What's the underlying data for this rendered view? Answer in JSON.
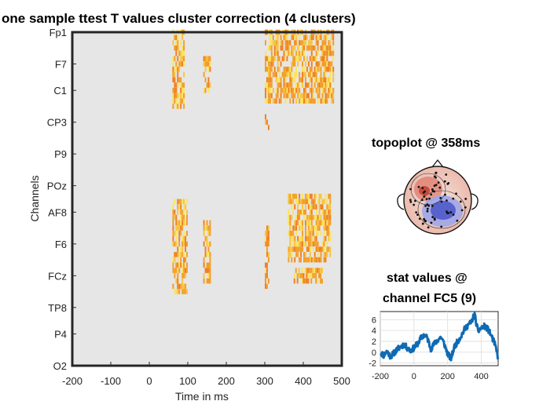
{
  "main": {
    "title": "one sample ttest T values cluster correction (4 clusters)",
    "ylabel": "Channels",
    "xlabel": "Time in ms",
    "xticks": [
      "-200",
      "-100",
      "0",
      "100",
      "200",
      "300",
      "400",
      "500"
    ],
    "yticks": [
      "Fp1",
      "F7",
      "C1",
      "CP3",
      "P9",
      "POz",
      "AF8",
      "F6",
      "FCz",
      "TP8",
      "P4",
      "O2"
    ]
  },
  "topo": {
    "title": "topoplot @ 358ms"
  },
  "stat": {
    "title_line1": "stat values @",
    "title_line2": "channel FC5 (9)",
    "xticks": [
      "-200",
      "0",
      "200",
      "400"
    ],
    "yticks": [
      "6",
      "4",
      "2",
      "0",
      "-2"
    ]
  },
  "colors": {
    "heatmap_bg": "#e6e6e6",
    "heat_low": "#f07f1e",
    "heat_mid": "#f2a22a",
    "heat_high": "#fde35a",
    "trace": "#0f6ab4",
    "topo_pos": "#d95f4f",
    "topo_neg": "#4a55c8"
  },
  "chart_data": [
    {
      "type": "heatmap",
      "title": "one sample ttest T values cluster correction (4 clusters)",
      "xlabel": "Time in ms",
      "ylabel": "Channels",
      "xlim": [
        -200,
        500
      ],
      "ylim_channels": [
        1,
        64
      ],
      "ytick_labels": [
        "Fp1",
        "F7",
        "C1",
        "CP3",
        "P9",
        "POz",
        "AF8",
        "F6",
        "FCz",
        "TP8",
        "P4",
        "O2"
      ],
      "ytick_channel_index": [
        1,
        7,
        12,
        18,
        24,
        30,
        35,
        41,
        47,
        53,
        58,
        64
      ],
      "clusters": [
        {
          "t_start": 60,
          "t_end": 90,
          "ch_start": 1,
          "ch_end": 15
        },
        {
          "t_start": 60,
          "t_end": 100,
          "ch_start": 33,
          "ch_end": 50
        },
        {
          "t_start": 140,
          "t_end": 160,
          "ch_start": 6,
          "ch_end": 12
        },
        {
          "t_start": 140,
          "t_end": 160,
          "ch_start": 37,
          "ch_end": 48
        },
        {
          "t_start": 300,
          "t_end": 480,
          "ch_start": 1,
          "ch_end": 14
        },
        {
          "t_start": 300,
          "t_end": 310,
          "ch_start": 17,
          "ch_end": 19
        },
        {
          "t_start": 300,
          "t_end": 310,
          "ch_start": 38,
          "ch_end": 49
        },
        {
          "t_start": 360,
          "t_end": 470,
          "ch_start": 32,
          "ch_end": 44
        },
        {
          "t_start": 375,
          "t_end": 450,
          "ch_start": 46,
          "ch_end": 48
        }
      ],
      "grid": false
    },
    {
      "type": "topoplot",
      "title": "topoplot @ 358ms",
      "time_ms": 358
    },
    {
      "type": "line",
      "title": "stat values @ channel FC5 (9)",
      "xlim": [
        -200,
        500
      ],
      "ylim": [
        -2.5,
        7.5
      ],
      "x": [
        -200,
        -180,
        -160,
        -140,
        -120,
        -100,
        -80,
        -60,
        -40,
        -20,
        0,
        20,
        40,
        60,
        80,
        100,
        120,
        140,
        160,
        180,
        200,
        220,
        240,
        260,
        280,
        300,
        320,
        340,
        360,
        380,
        400,
        420,
        440,
        460,
        480,
        500
      ],
      "y": [
        0,
        -0.6,
        0.2,
        -0.8,
        -0.2,
        0.5,
        1.0,
        1.4,
        0.8,
        0.3,
        0.8,
        1.5,
        2.5,
        3.2,
        2.6,
        0.6,
        1.5,
        2.2,
        2.8,
        1.5,
        -0.3,
        -1.2,
        1.0,
        2.0,
        3.0,
        4.2,
        5.0,
        5.5,
        7.0,
        3.8,
        4.5,
        4.8,
        4.2,
        3.0,
        1.5,
        -1.0
      ],
      "grid": true
    }
  ]
}
